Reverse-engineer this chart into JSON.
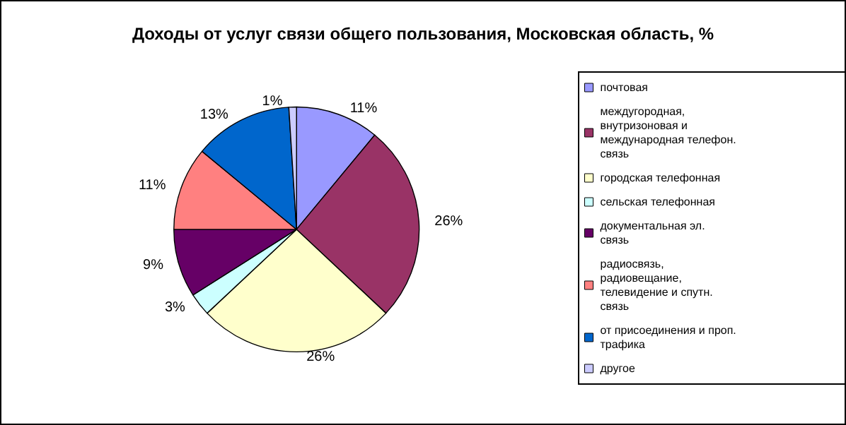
{
  "chart_data": {
    "type": "pie",
    "title": "Доходы от услуг связи общего пользования, Московская область, %",
    "categories": [
      "почтовая",
      "междугородная, внутризоновая и международная телефон. связь",
      "городская телефонная",
      "сельская телефонная",
      "документальная эл. связь",
      "радиосвязь, радиовещание, телевидение и спутн. связь",
      "от присоединения и проп. трафика",
      "другое"
    ],
    "values": [
      11,
      26,
      26,
      3,
      9,
      11,
      13,
      1
    ],
    "value_labels": [
      "11%",
      "26%",
      "26%",
      "3%",
      "9%",
      "11%",
      "13%",
      "1%"
    ],
    "colors": [
      "#9999ff",
      "#993366",
      "#ffffcc",
      "#ccffff",
      "#660066",
      "#ff8080",
      "#0066cc",
      "#ccccff"
    ],
    "legend": "right"
  }
}
